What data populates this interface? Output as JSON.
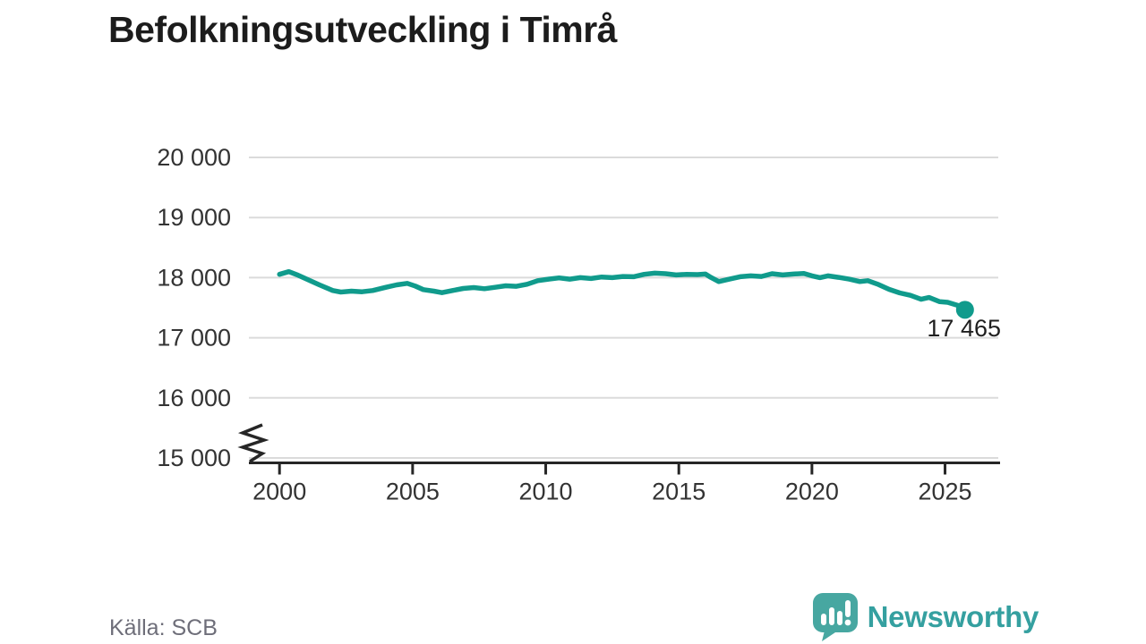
{
  "title": "Befolkningsutveckling i Timrå",
  "source": "Källa: SCB",
  "logo": {
    "brand": "Newsworthy",
    "icon": "newsworthy-speech-bubble-chart-icon",
    "icon_color": "#47a7a1",
    "text_color": "#35a0a0"
  },
  "chart_data": {
    "type": "line",
    "title": "Befolkningsutveckling i Timrå",
    "xlabel": "",
    "ylabel": "",
    "xlim": [
      1998.85,
      2027.0
    ],
    "ylim": [
      15000,
      20000
    ],
    "grid": "horizontal",
    "axis_break": true,
    "legend": "none",
    "line_color": "#109b8c",
    "grid_color": "#dbdbdb",
    "axis_color": "#262626",
    "tick_text_color": "#333333",
    "end_label": "17 465",
    "end_value": 17465,
    "x_ticks": [
      2000,
      2005,
      2010,
      2015,
      2020,
      2025
    ],
    "y_ticks": [
      {
        "value": 15000,
        "label": "15 000"
      },
      {
        "value": 16000,
        "label": "16 000"
      },
      {
        "value": 17000,
        "label": "17 000"
      },
      {
        "value": 18000,
        "label": "18 000"
      },
      {
        "value": 19000,
        "label": "19 000"
      },
      {
        "value": 20000,
        "label": "20 000"
      }
    ],
    "series": [
      {
        "name": "Befolkning i Timrå",
        "points": [
          [
            2000.0,
            18055
          ],
          [
            2000.35,
            18100
          ],
          [
            2000.7,
            18040
          ],
          [
            2001.1,
            17960
          ],
          [
            2001.5,
            17880
          ],
          [
            2002.0,
            17785
          ],
          [
            2002.3,
            17760
          ],
          [
            2002.7,
            17775
          ],
          [
            2003.1,
            17765
          ],
          [
            2003.5,
            17785
          ],
          [
            2004.0,
            17840
          ],
          [
            2004.4,
            17880
          ],
          [
            2004.8,
            17905
          ],
          [
            2005.1,
            17860
          ],
          [
            2005.4,
            17800
          ],
          [
            2005.8,
            17775
          ],
          [
            2006.1,
            17750
          ],
          [
            2006.5,
            17785
          ],
          [
            2006.9,
            17820
          ],
          [
            2007.3,
            17835
          ],
          [
            2007.7,
            17815
          ],
          [
            2008.1,
            17840
          ],
          [
            2008.5,
            17865
          ],
          [
            2008.9,
            17855
          ],
          [
            2009.3,
            17890
          ],
          [
            2009.7,
            17950
          ],
          [
            2010.1,
            17975
          ],
          [
            2010.5,
            17995
          ],
          [
            2010.9,
            17975
          ],
          [
            2011.3,
            18000
          ],
          [
            2011.7,
            17985
          ],
          [
            2012.1,
            18010
          ],
          [
            2012.5,
            18000
          ],
          [
            2012.9,
            18020
          ],
          [
            2013.3,
            18015
          ],
          [
            2013.7,
            18055
          ],
          [
            2014.1,
            18075
          ],
          [
            2014.5,
            18065
          ],
          [
            2014.9,
            18045
          ],
          [
            2015.3,
            18055
          ],
          [
            2015.7,
            18050
          ],
          [
            2016.0,
            18060
          ],
          [
            2016.2,
            18005
          ],
          [
            2016.5,
            17935
          ],
          [
            2016.9,
            17975
          ],
          [
            2017.3,
            18015
          ],
          [
            2017.7,
            18030
          ],
          [
            2018.1,
            18020
          ],
          [
            2018.5,
            18065
          ],
          [
            2018.9,
            18045
          ],
          [
            2019.3,
            18060
          ],
          [
            2019.7,
            18070
          ],
          [
            2020.0,
            18030
          ],
          [
            2020.3,
            18000
          ],
          [
            2020.6,
            18030
          ],
          [
            2021.0,
            18005
          ],
          [
            2021.4,
            17975
          ],
          [
            2021.8,
            17935
          ],
          [
            2022.1,
            17950
          ],
          [
            2022.5,
            17885
          ],
          [
            2022.9,
            17805
          ],
          [
            2023.3,
            17745
          ],
          [
            2023.7,
            17705
          ],
          [
            2024.1,
            17640
          ],
          [
            2024.4,
            17670
          ],
          [
            2024.8,
            17600
          ],
          [
            2025.1,
            17590
          ],
          [
            2025.5,
            17535
          ],
          [
            2025.75,
            17465
          ]
        ]
      }
    ]
  }
}
